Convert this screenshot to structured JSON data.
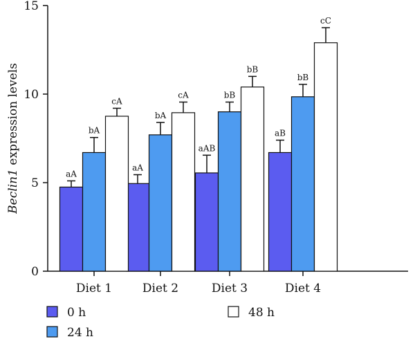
{
  "chart_data": {
    "type": "bar",
    "ylabel_italic": "Beclin1",
    "ylabel_rest": " expression levels",
    "ylim": [
      0,
      15
    ],
    "yticks": [
      "0",
      "5",
      "10",
      "15"
    ],
    "categories": [
      "Diet 1",
      "Diet 2",
      "Diet 3",
      "Diet 4"
    ],
    "series": [
      {
        "name": "0 h",
        "color": "#5b5cf0",
        "values": [
          4.75,
          4.95,
          5.55,
          6.7
        ],
        "errors": [
          0.35,
          0.5,
          1.0,
          0.7
        ],
        "labels": [
          "aA",
          "aA",
          "aAB",
          "aB"
        ]
      },
      {
        "name": "24 h",
        "color": "#4e9bf0",
        "values": [
          6.7,
          7.7,
          9.0,
          9.85
        ],
        "errors": [
          0.85,
          0.7,
          0.55,
          0.7
        ],
        "labels": [
          "bA",
          "bA",
          "bB",
          "bB"
        ]
      },
      {
        "name": "48 h",
        "color": "#ffffff",
        "values": [
          8.75,
          8.95,
          10.4,
          12.9
        ],
        "errors": [
          0.45,
          0.6,
          0.6,
          0.85
        ],
        "labels": [
          "cA",
          "cA",
          "bB",
          "cC"
        ]
      }
    ],
    "legend_position": "bottom",
    "grid": false
  }
}
